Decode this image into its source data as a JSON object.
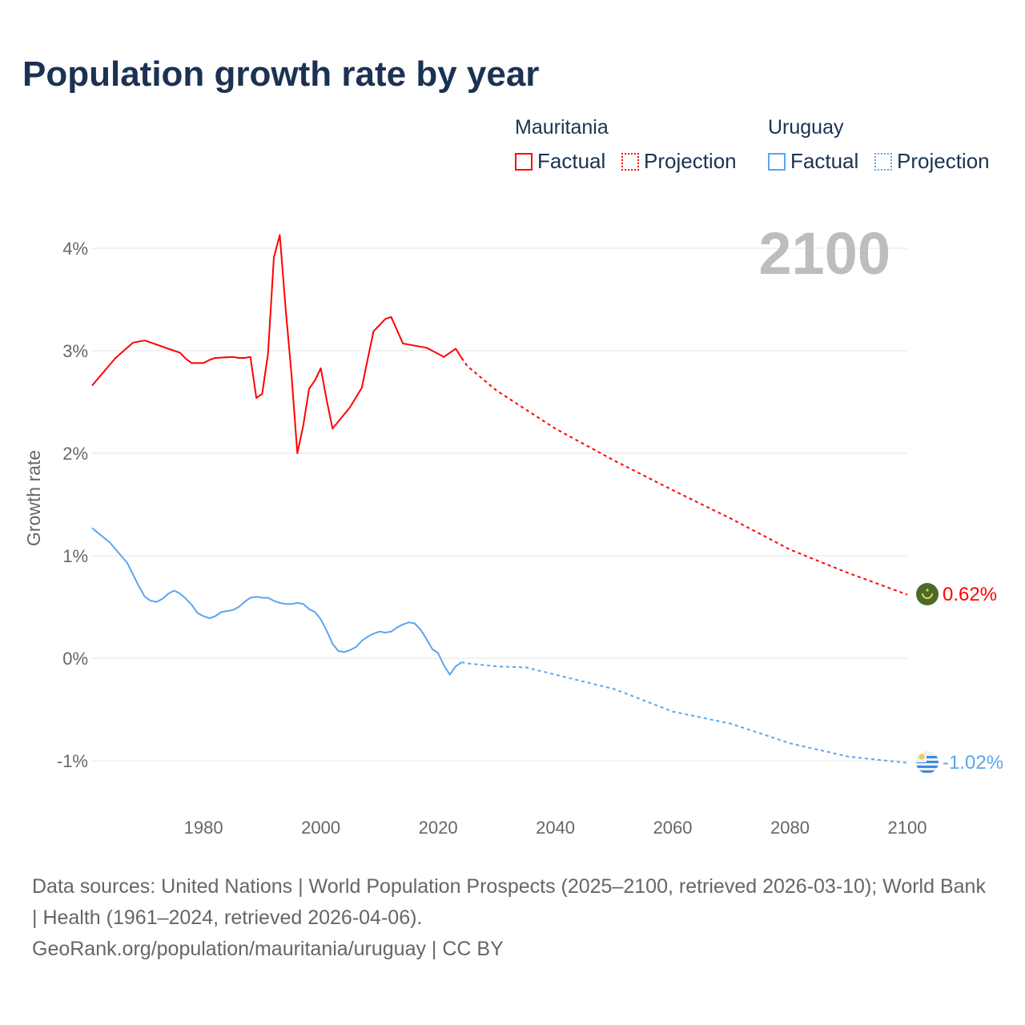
{
  "title": "Population growth rate by year",
  "legend": {
    "groups": [
      {
        "name": "Mauritania",
        "factual": "Factual",
        "projection": "Projection",
        "color": "#ff0000"
      },
      {
        "name": "Uruguay",
        "factual": "Factual",
        "projection": "Projection",
        "color": "#5aa5f0"
      }
    ]
  },
  "year_label": "2100",
  "end_labels": {
    "mauritania": "0.62%",
    "uruguay": "-1.02%"
  },
  "icons": {
    "mauritania": "mauritania-flag-icon",
    "uruguay": "uruguay-flag-icon"
  },
  "chart_data": {
    "type": "line",
    "title": "Population growth rate by year",
    "xlabel": "",
    "ylabel": "Growth rate",
    "xlim": [
      1961,
      2100
    ],
    "ylim": [
      -1.4,
      4.3
    ],
    "grid": true,
    "xticks": [
      1980,
      2000,
      2020,
      2040,
      2060,
      2080,
      2100
    ],
    "xtick_labels": [
      "1980",
      "2000",
      "2020",
      "2040",
      "2060",
      "2080",
      "2100"
    ],
    "yticks": [
      -1,
      0,
      1,
      2,
      3,
      4
    ],
    "ytick_labels": [
      "-1%",
      "0%",
      "1%",
      "2%",
      "3%",
      "4%"
    ],
    "series": [
      {
        "name": "Mauritania Factual",
        "color": "#ff0000",
        "style": "solid",
        "x": [
          1961,
          1965,
          1968,
          1970,
          1975,
          1976,
          1977,
          1978,
          1980,
          1981,
          1982,
          1985,
          1986,
          1987,
          1988,
          1989,
          1990,
          1991,
          1992,
          1993,
          1994,
          1995,
          1996,
          1997,
          1998,
          1999,
          2000,
          2001,
          2002,
          2005,
          2007,
          2008,
          2009,
          2011,
          2012,
          2014,
          2018,
          2019,
          2021,
          2023,
          2024
        ],
        "y": [
          2.66,
          2.93,
          3.08,
          3.1,
          3.0,
          2.98,
          2.92,
          2.88,
          2.88,
          2.91,
          2.93,
          2.94,
          2.93,
          2.93,
          2.94,
          2.54,
          2.58,
          2.97,
          3.91,
          4.13,
          3.41,
          2.77,
          2.0,
          2.27,
          2.63,
          2.71,
          2.83,
          2.52,
          2.24,
          2.45,
          2.64,
          2.92,
          3.19,
          3.31,
          3.33,
          3.07,
          3.03,
          3.0,
          2.94,
          3.02,
          2.93
        ]
      },
      {
        "name": "Mauritania Projection",
        "color": "#ff0000",
        "style": "dotted",
        "x": [
          2024,
          2025,
          2030,
          2040,
          2050,
          2060,
          2070,
          2080,
          2090,
          2100
        ],
        "y": [
          2.93,
          2.85,
          2.61,
          2.24,
          1.93,
          1.64,
          1.36,
          1.06,
          0.83,
          0.62
        ]
      },
      {
        "name": "Uruguay Factual",
        "color": "#5aa5f0",
        "style": "solid",
        "x": [
          1961,
          1964,
          1967,
          1969,
          1970,
          1971,
          1972,
          1973,
          1974,
          1975,
          1976,
          1977,
          1978,
          1979,
          1980,
          1981,
          1982,
          1983,
          1985,
          1986,
          1987,
          1988,
          1989,
          1990,
          1991,
          1992,
          1993,
          1994,
          1995,
          1996,
          1997,
          1998,
          1999,
          2000,
          2001,
          2002,
          2003,
          2004,
          2005,
          2006,
          2007,
          2008,
          2009,
          2010,
          2011,
          2012,
          2013,
          2014,
          2015,
          2016,
          2017,
          2018,
          2019,
          2020,
          2021,
          2022,
          2023,
          2024
        ],
        "y": [
          1.27,
          1.13,
          0.93,
          0.7,
          0.6,
          0.56,
          0.55,
          0.58,
          0.63,
          0.66,
          0.63,
          0.58,
          0.52,
          0.44,
          0.41,
          0.39,
          0.41,
          0.45,
          0.47,
          0.5,
          0.55,
          0.59,
          0.6,
          0.59,
          0.59,
          0.56,
          0.54,
          0.53,
          0.53,
          0.54,
          0.53,
          0.48,
          0.45,
          0.38,
          0.27,
          0.14,
          0.07,
          0.06,
          0.08,
          0.11,
          0.17,
          0.21,
          0.24,
          0.26,
          0.25,
          0.26,
          0.3,
          0.33,
          0.35,
          0.34,
          0.28,
          0.19,
          0.09,
          0.05,
          -0.07,
          -0.16,
          -0.08,
          -0.04
        ]
      },
      {
        "name": "Uruguay Projection",
        "color": "#5aa5f0",
        "style": "dotted",
        "x": [
          2024,
          2025,
          2030,
          2035,
          2040,
          2050,
          2060,
          2070,
          2080,
          2090,
          2100
        ],
        "y": [
          -0.04,
          -0.05,
          -0.08,
          -0.09,
          -0.16,
          -0.3,
          -0.52,
          -0.64,
          -0.83,
          -0.96,
          -1.02
        ]
      }
    ]
  },
  "footer": {
    "line1": "Data sources: United Nations | World Population Prospects (2025–2100, retrieved 2026-03-10); World Bank | Health (1961–2024, retrieved 2026-04-06).",
    "line2": "GeoRank.org/population/mauritania/uruguay | CC BY"
  }
}
